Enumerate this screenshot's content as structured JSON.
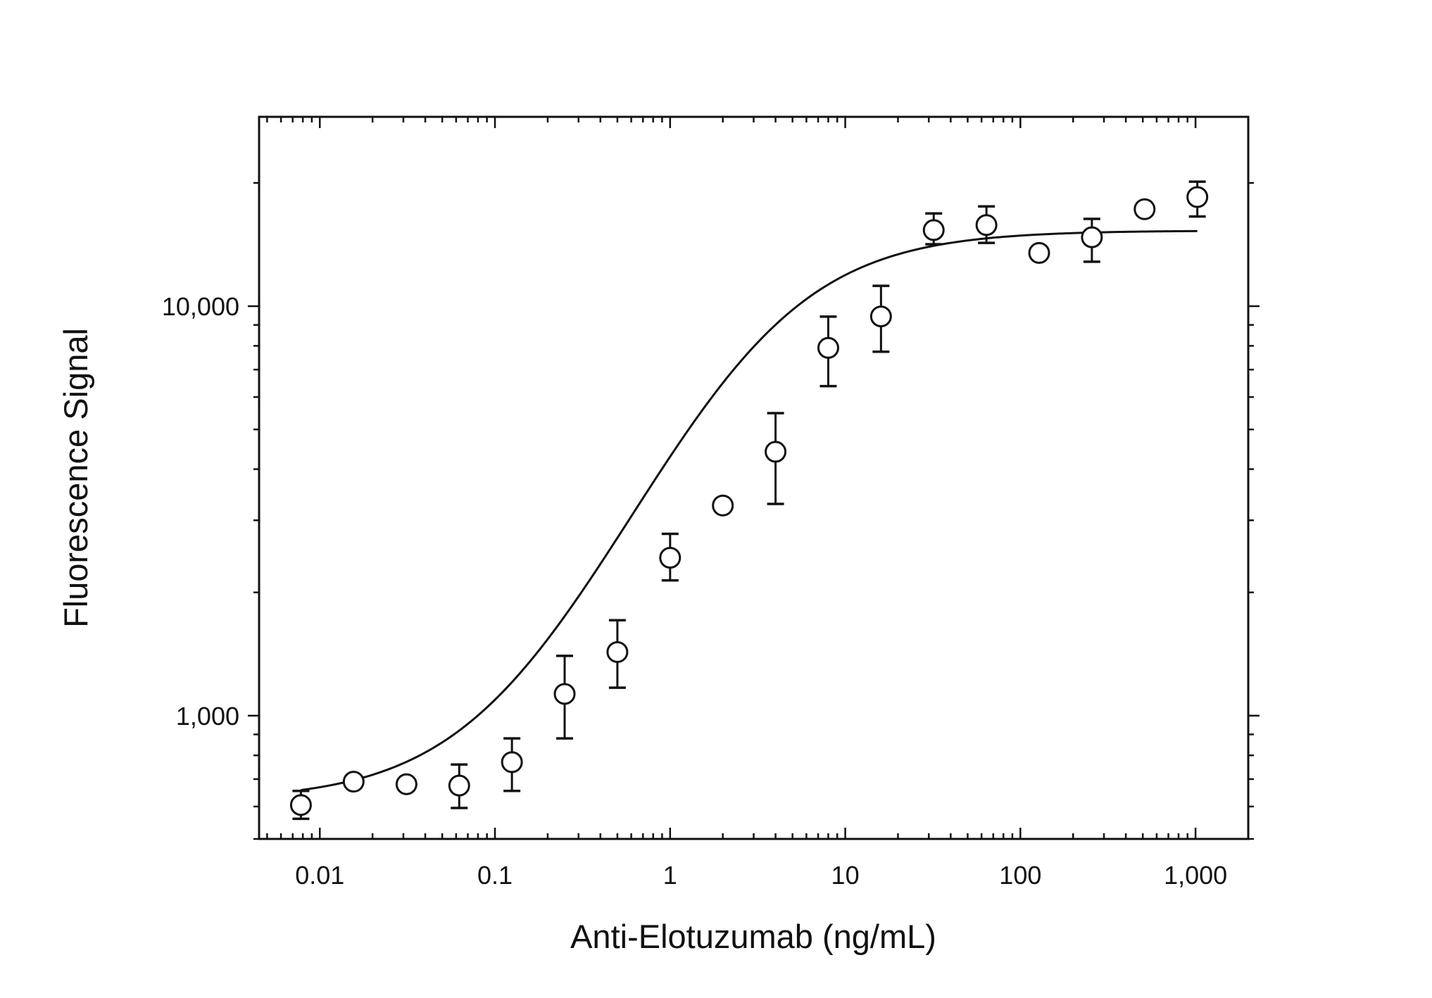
{
  "chart_data": {
    "type": "scatter",
    "title": "",
    "xlabel": "Anti-Elotuzumab (ng/mL)",
    "ylabel": "Fluorescence Signal",
    "x_scale": "log",
    "y_scale": "log",
    "xlim": [
      0.0045,
      2000
    ],
    "ylim": [
      500,
      29000
    ],
    "x_ticks": [
      {
        "value": 0.01,
        "label": "0.01"
      },
      {
        "value": 0.1,
        "label": "0.1"
      },
      {
        "value": 1,
        "label": "1"
      },
      {
        "value": 10,
        "label": "10"
      },
      {
        "value": 100,
        "label": "100"
      },
      {
        "value": 1000,
        "label": "1,000"
      }
    ],
    "y_ticks": [
      {
        "value": 1000,
        "label": "1,000"
      },
      {
        "value": 10000,
        "label": "10,000"
      }
    ],
    "grid": false,
    "legend": "none",
    "marker": "open-circle",
    "points": [
      {
        "x": 0.0078,
        "y": 605,
        "err_low": 560,
        "err_high": 655
      },
      {
        "x": 0.0156,
        "y": 690,
        "err_low": 675,
        "err_high": 710
      },
      {
        "x": 0.03125,
        "y": 680,
        "err_low": 665,
        "err_high": 695
      },
      {
        "x": 0.0625,
        "y": 675,
        "err_low": 595,
        "err_high": 760
      },
      {
        "x": 0.125,
        "y": 770,
        "err_low": 655,
        "err_high": 880
      },
      {
        "x": 0.25,
        "y": 1130,
        "err_low": 880,
        "err_high": 1400
      },
      {
        "x": 0.5,
        "y": 1430,
        "err_low": 1170,
        "err_high": 1710
      },
      {
        "x": 1,
        "y": 2430,
        "err_low": 2140,
        "err_high": 2780
      },
      {
        "x": 2,
        "y": 3260,
        "err_low": 3180,
        "err_high": 3330
      },
      {
        "x": 4,
        "y": 4410,
        "err_low": 3290,
        "err_high": 5480
      },
      {
        "x": 8,
        "y": 7910,
        "err_low": 6380,
        "err_high": 9430
      },
      {
        "x": 16,
        "y": 9440,
        "err_low": 7740,
        "err_high": 11210
      },
      {
        "x": 32,
        "y": 15340,
        "err_low": 14170,
        "err_high": 16850
      },
      {
        "x": 64,
        "y": 15780,
        "err_low": 14270,
        "err_high": 17530
      },
      {
        "x": 128,
        "y": 13490,
        "err_low": 13150,
        "err_high": 13880
      },
      {
        "x": 256,
        "y": 14730,
        "err_low": 12840,
        "err_high": 16340
      },
      {
        "x": 512,
        "y": 17250,
        "err_low": 16810,
        "err_high": 17710
      },
      {
        "x": 1024,
        "y": 18470,
        "err_low": 16560,
        "err_high": 20140
      }
    ],
    "fit_curve": {
      "model": "4PL",
      "bottom": 620,
      "top": 15300,
      "ec50": 3.0,
      "hill": 1.0,
      "x_range": [
        0.0078,
        1024
      ]
    },
    "colors": {
      "ink": "#111111",
      "background": "#ffffff"
    }
  }
}
